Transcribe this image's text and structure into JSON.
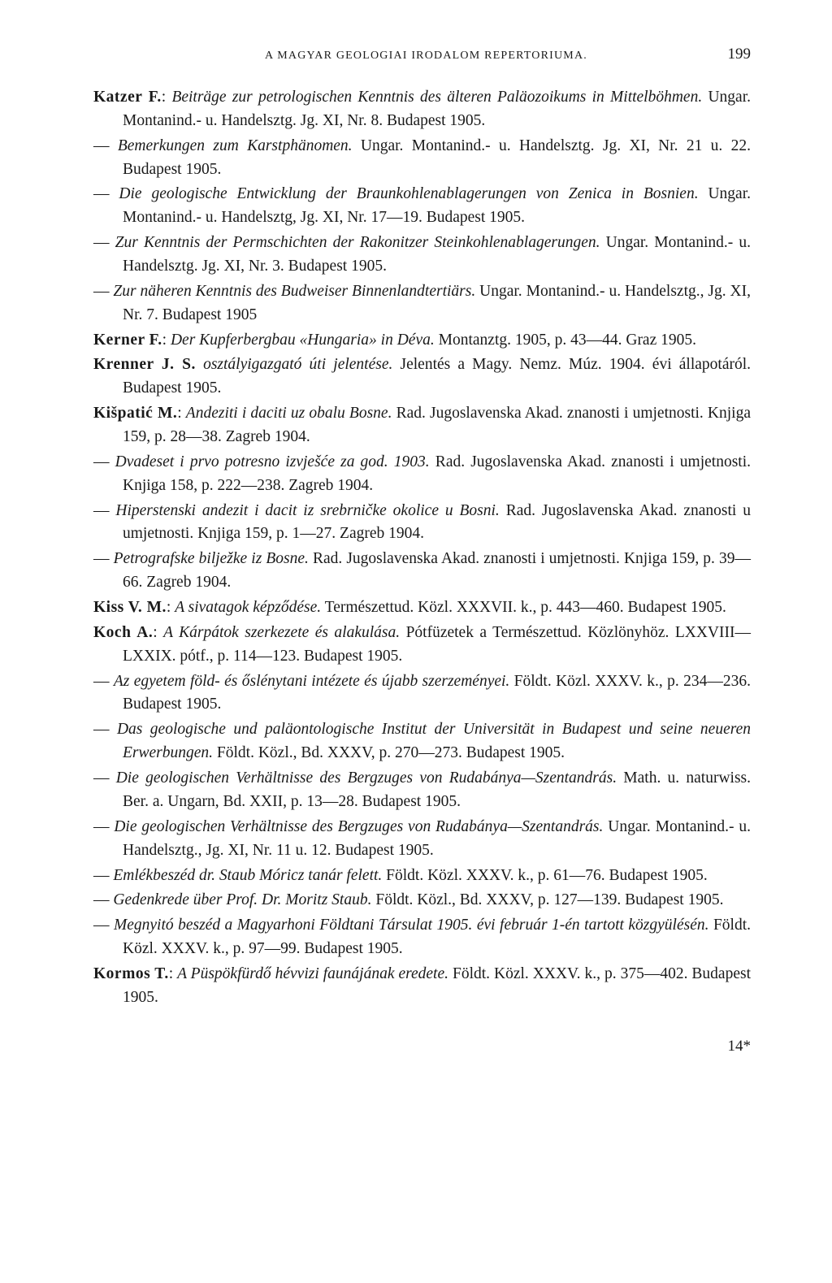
{
  "header": {
    "running_head": "A MAGYAR GEOLOGIAI IRODALOM REPERTORIUMA.",
    "page_number": "199"
  },
  "entries": [
    {
      "author": "Katzer F.",
      "sep": ": ",
      "title": "Beiträge zur petrologischen Kenntnis des älteren Paläozoikums in Mittelböhmen.",
      "rest": " Ungar. Montanind.- u. Handelsztg. Jg. XI, Nr. 8. Budapest 1905."
    },
    {
      "dash": "— ",
      "title": "Bemerkungen zum Karstphänomen.",
      "rest": " Ungar. Montanind.- u. Handelsztg. Jg. XI, Nr. 21 u. 22. Budapest 1905."
    },
    {
      "dash": "— ",
      "title": "Die geologische Entwicklung der Braunkohlenablagerungen von Zenica in Bosnien.",
      "rest": " Ungar. Montanind.- u. Handelsztg, Jg. XI, Nr. 17—19. Budapest 1905."
    },
    {
      "dash": "— ",
      "title": "Zur Kenntnis der Permschichten der Rakonitzer Steinkohlenablagerungen.",
      "rest": " Ungar. Montanind.- u. Handelsztg. Jg. XI, Nr. 3. Budapest 1905."
    },
    {
      "dash": "— ",
      "title": "Zur näheren Kenntnis des Budweiser Binnenlandtertiärs.",
      "rest": " Ungar. Montanind.- u. Handelsztg., Jg. XI, Nr. 7. Budapest 1905"
    },
    {
      "author": "Kerner F.",
      "sep": ": ",
      "title": "Der Kupferbergbau «Hungaria» in Déva.",
      "rest": " Montanztg. 1905, p. 43—44. Graz 1905."
    },
    {
      "author": "Krenner J. S.",
      "sep": " ",
      "title": "osztályigazgató úti jelentése.",
      "rest": " Jelentés a Magy. Nemz. Múz. 1904. évi állapotáról. Budapest 1905."
    },
    {
      "author": "Kišpatić M.",
      "sep": ": ",
      "title": "Andeziti i daciti uz obalu Bosne.",
      "rest": " Rad. Jugoslavenska Akad. znanosti i umjetnosti. Knjiga 159, p. 28—38. Zagreb 1904."
    },
    {
      "dash": "— ",
      "title": "Dvadeset i prvo potresno izvješće za god. 1903.",
      "rest": " Rad. Jugoslavenska Akad. znanosti i umjetnosti. Knjiga 158, p. 222—238. Zagreb 1904."
    },
    {
      "dash": "— ",
      "title": "Hiperstenski andezit i dacit iz srebrničke okolice u Bosni.",
      "rest": " Rad. Jugoslavenska Akad. znanosti u umjetnosti. Knjiga 159, p. 1—27. Zagreb 1904."
    },
    {
      "dash": "— ",
      "title": "Petrografske bilježke iz Bosne.",
      "rest": " Rad. Jugoslavenska Akad. znanosti i umjetnosti. Knjiga 159, p. 39—66. Zagreb 1904."
    },
    {
      "author": "Kiss V. M.",
      "sep": ": ",
      "title": "A sivatagok képződése.",
      "rest": " Természettud. Közl. XXXVII. k., p. 443—460. Budapest 1905."
    },
    {
      "author": "Koch A.",
      "sep": ": ",
      "title": "A Kárpátok szerkezete és alakulása.",
      "rest": " Pótfüzetek a Természettud. Közlönyhöz. LXXVIII—LXXIX. pótf., p. 114—123. Budapest 1905."
    },
    {
      "dash": "— ",
      "title": "Az egyetem föld- és őslénytani intézete és újabb szerzeményei.",
      "rest": " Földt. Közl. XXXV. k., p. 234—236. Budapest 1905."
    },
    {
      "dash": "— ",
      "title": "Das geologische und paläontologische Institut der Universität in Budapest und seine neueren Erwerbungen.",
      "rest": " Földt. Közl., Bd. XXXV, p. 270—273. Budapest 1905."
    },
    {
      "dash": "— ",
      "title": "Die geologischen Verhältnisse des Bergzuges von Rudabánya—Szentandrás.",
      "rest": " Math. u. naturwiss. Ber. a. Ungarn, Bd. XXII, p. 13—28. Budapest 1905."
    },
    {
      "dash": "— ",
      "title": "Die geologischen Verhältnisse des Bergzuges von Rudabánya—Szentandrás.",
      "rest": " Ungar. Montanind.- u. Handelsztg., Jg. XI, Nr. 11 u. 12. Budapest 1905."
    },
    {
      "dash": "— ",
      "title": "Emlékbeszéd dr. Staub Móricz tanár felett.",
      "rest": " Földt. Közl. XXXV. k., p. 61—76. Budapest 1905."
    },
    {
      "dash": "— ",
      "title": "Gedenkrede über Prof. Dr. Moritz Staub.",
      "rest": " Földt. Közl., Bd. XXXV, p. 127—139. Budapest 1905."
    },
    {
      "dash": "— ",
      "title": "Megnyitó beszéd a Magyarhoni Földtani Társulat 1905. évi február 1-én tartott közgyülésén.",
      "rest": " Földt. Közl. XXXV. k., p. 97—99. Budapest 1905."
    },
    {
      "author": "Kormos T.",
      "sep": ": ",
      "title": "A Püspökfürdő hévvizi faunájának eredete.",
      "rest": " Földt. Közl. XXXV. k., p. 375—402. Budapest 1905."
    }
  ],
  "signature": "14*"
}
